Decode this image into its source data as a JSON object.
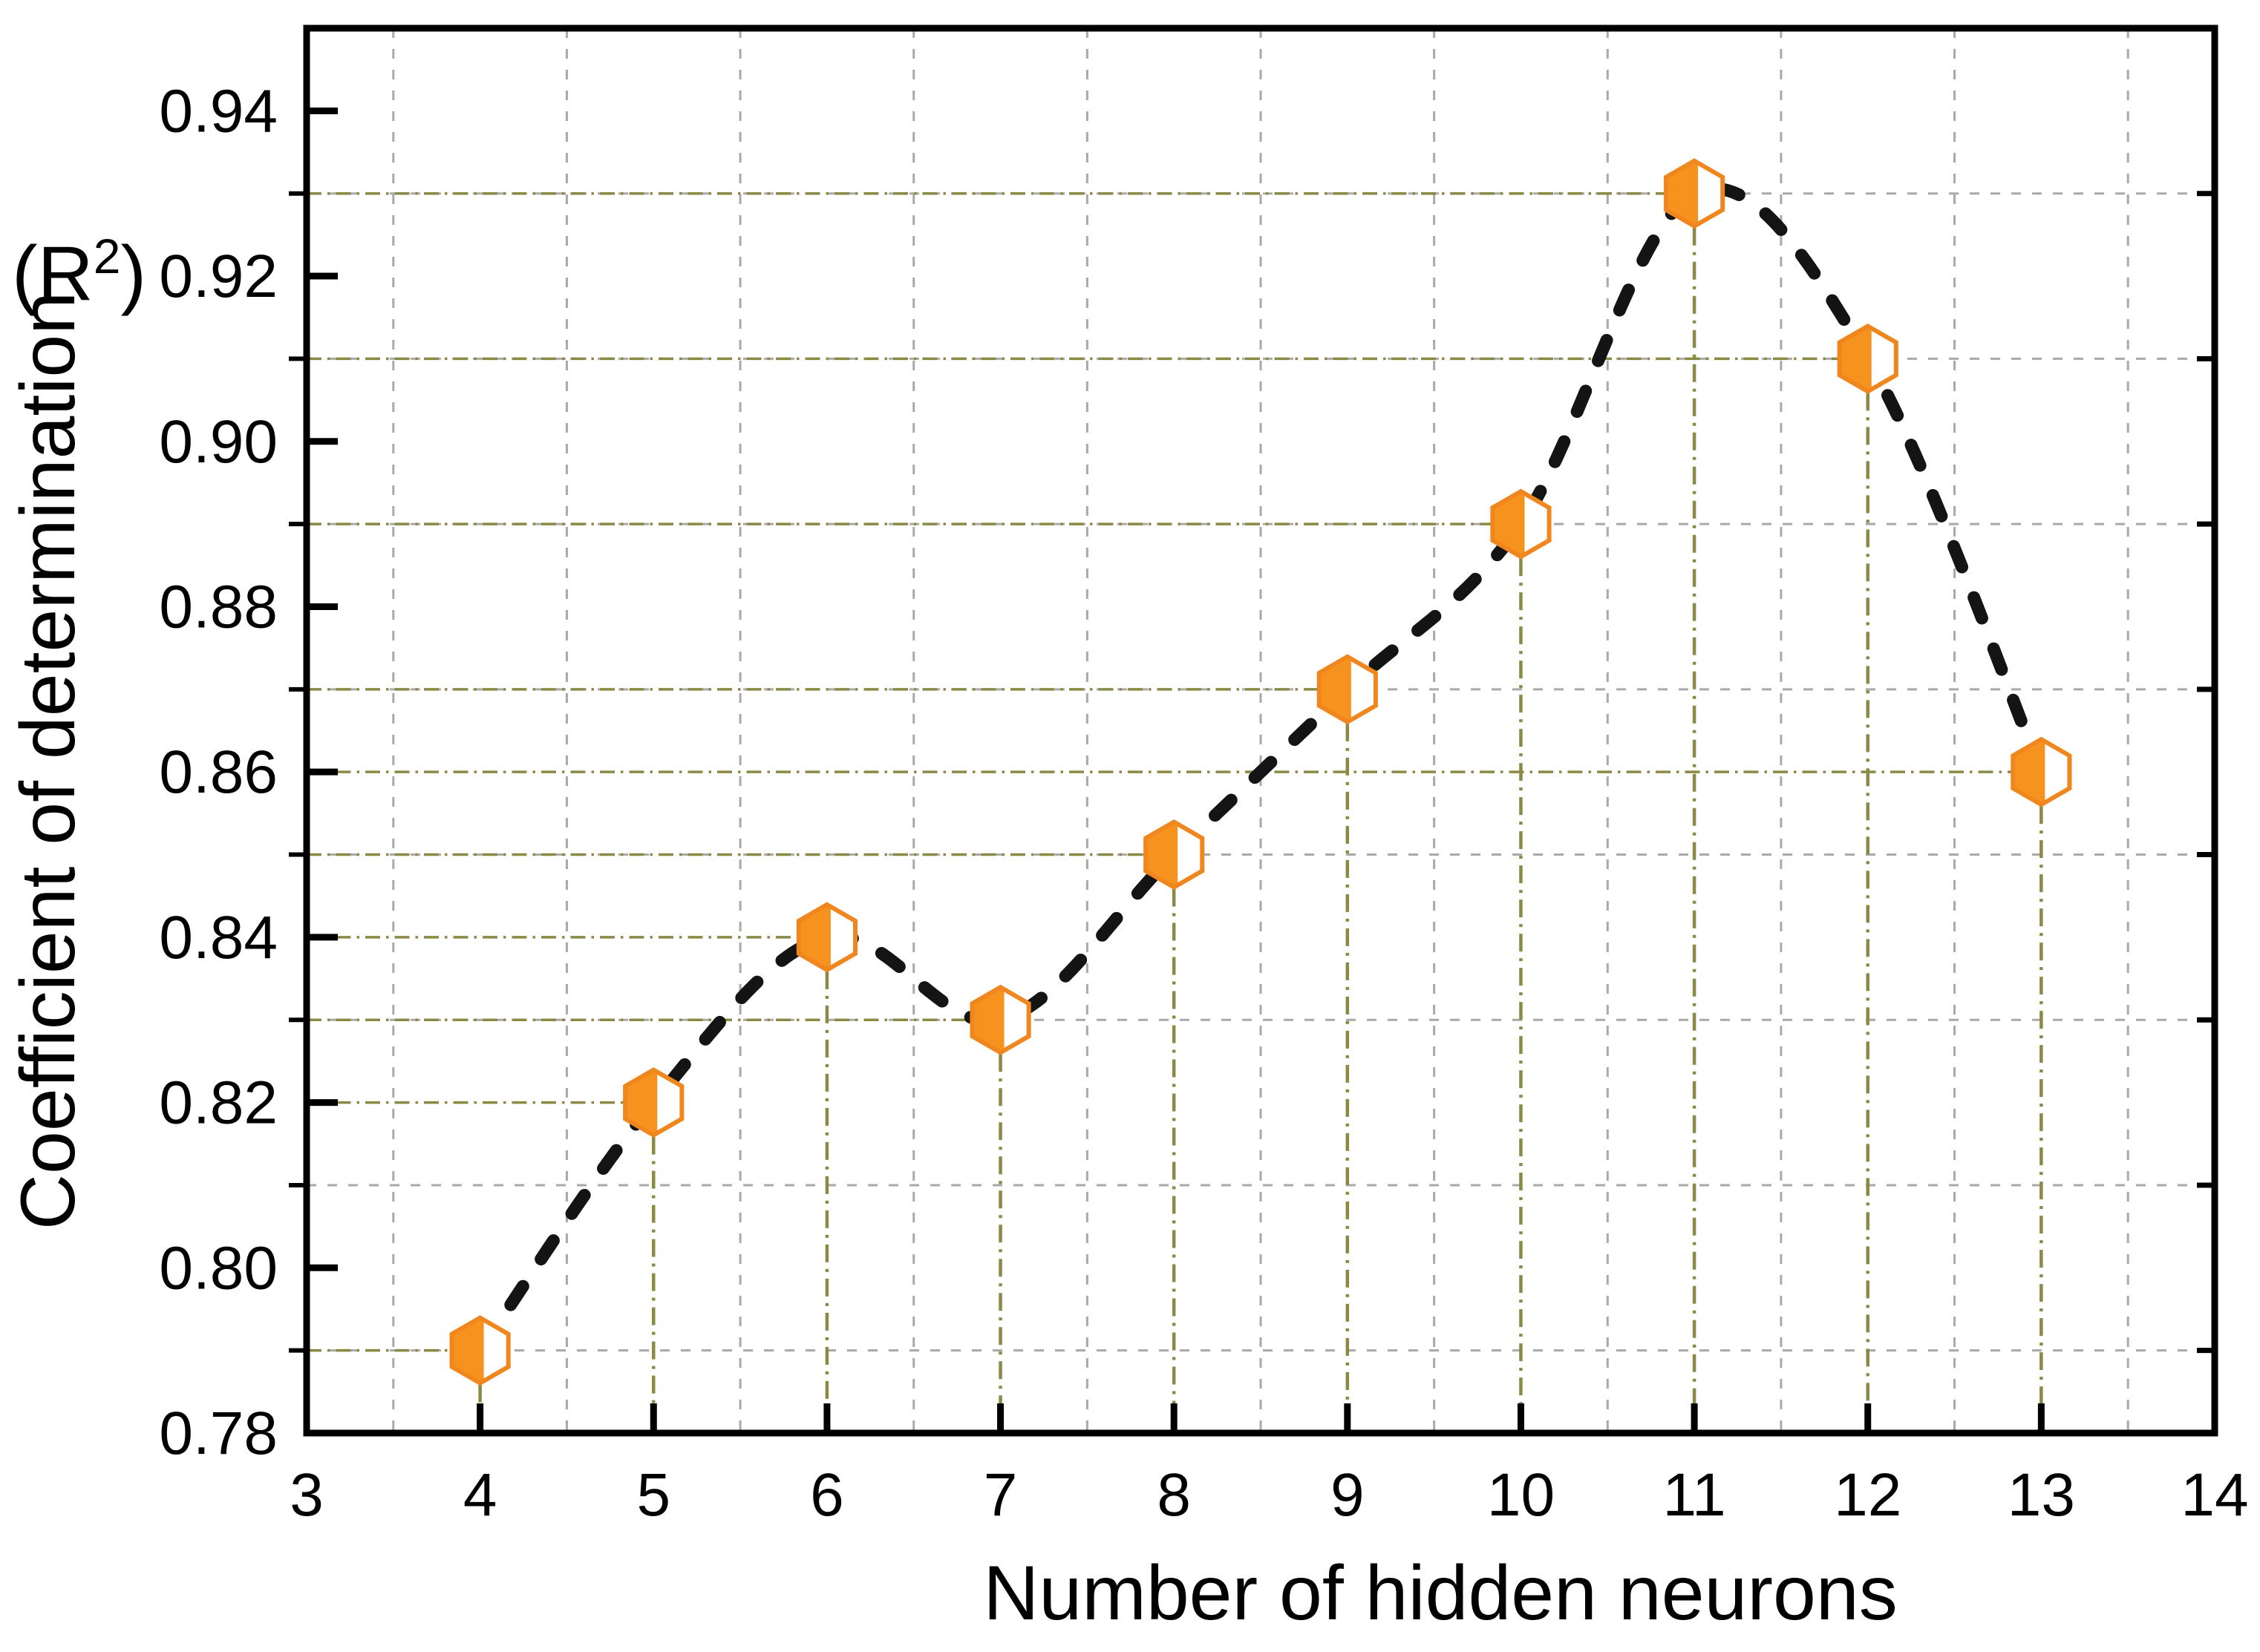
{
  "figure": {
    "background": "#FFFFFF"
  },
  "chart_data": {
    "type": "line",
    "title": "",
    "xlabel": "Number of hidden neurons",
    "ylabel": "Coefficient of determination",
    "ylabel_unit": {
      "prefix": "(R",
      "sup": "2",
      "suffix": ")"
    },
    "x": [
      4,
      5,
      6,
      7,
      8,
      9,
      10,
      11,
      12,
      13
    ],
    "y": [
      0.79,
      0.82,
      0.84,
      0.83,
      0.85,
      0.87,
      0.89,
      0.93,
      0.91,
      0.86
    ],
    "xlim": [
      3,
      14
    ],
    "ylim": [
      0.78,
      0.95
    ],
    "x_major_ticks": [
      3,
      4,
      5,
      6,
      7,
      8,
      9,
      10,
      11,
      12,
      13,
      14
    ],
    "x_tick_labels": [
      "3",
      "4",
      "5",
      "6",
      "7",
      "8",
      "9",
      "10",
      "11",
      "12",
      "13",
      "14"
    ],
    "y_major_ticks": [
      0.78,
      0.8,
      0.82,
      0.84,
      0.86,
      0.88,
      0.9,
      0.92,
      0.94
    ],
    "y_tick_labels": [
      "0.78",
      "0.80",
      "0.82",
      "0.84",
      "0.86",
      "0.88",
      "0.90",
      "0.92",
      "0.94"
    ],
    "x_minor_grid": [
      3.5,
      4.5,
      5.5,
      6.5,
      7.5,
      8.5,
      9.5,
      10.5,
      11.5,
      12.5,
      13.5
    ],
    "y_minor_grid": [
      0.79,
      0.81,
      0.83,
      0.85,
      0.87,
      0.89,
      0.91,
      0.93
    ],
    "grid": "minor-dashed",
    "legend": "none",
    "line_style": "dashed-spline",
    "marker_style": "half-filled-hexagon",
    "drop_lines": "to both axes (dash-dot)",
    "colors": {
      "curve": "#141414",
      "marker_fill": "#F6921E",
      "marker_stroke": "#F0871E",
      "minor_grid": "#A9A9A9",
      "drop_lines": "#8A8A45",
      "axis": "#000000",
      "text": "#000000"
    }
  }
}
